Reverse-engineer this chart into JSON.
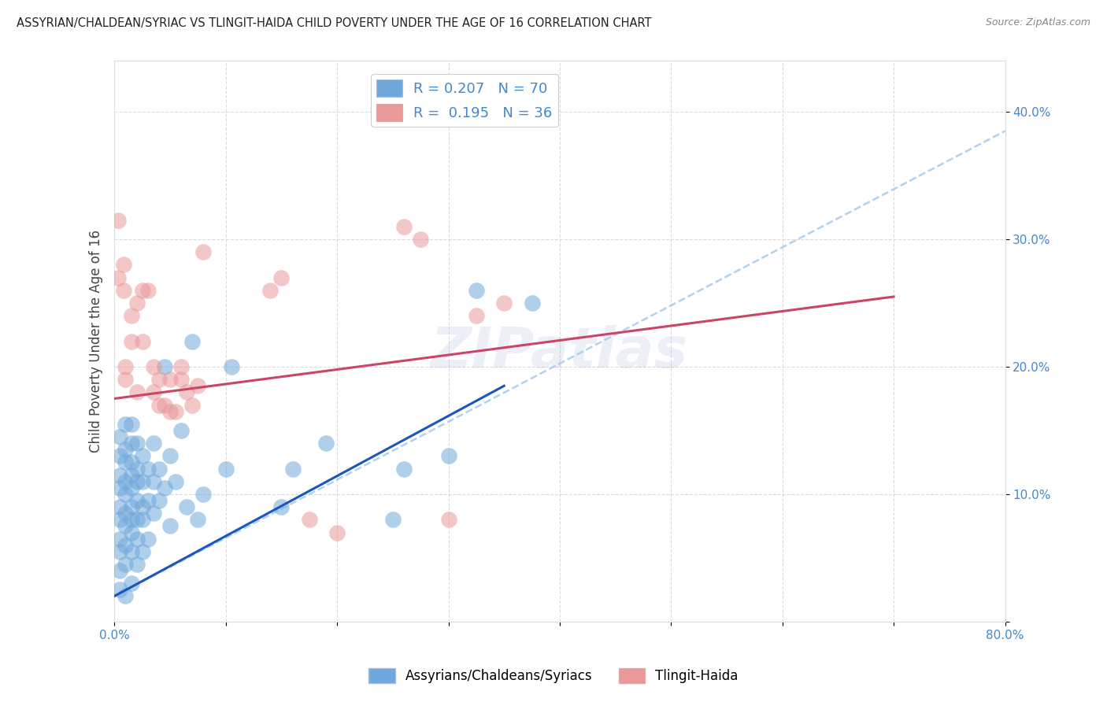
{
  "title": "ASSYRIAN/CHALDEAN/SYRIAC VS TLINGIT-HAIDA CHILD POVERTY UNDER THE AGE OF 16 CORRELATION CHART",
  "source": "Source: ZipAtlas.com",
  "ylabel": "Child Poverty Under the Age of 16",
  "r_blue": 0.207,
  "n_blue": 70,
  "r_pink": 0.195,
  "n_pink": 36,
  "legend_blue": "Assyrians/Chaldeans/Syriacs",
  "legend_pink": "Tlingit-Haida",
  "xlim": [
    0.0,
    0.8
  ],
  "ylim": [
    0.0,
    0.44
  ],
  "watermark": "ZIPatlas",
  "blue_color": "#6fa8dc",
  "pink_color": "#ea9999",
  "blue_line_color": "#1a56bb",
  "pink_line_color": "#cc4466",
  "dash_line_color": "#aaccee",
  "label_color": "#4488cc",
  "blue_scatter": [
    [
      0.005,
      0.025
    ],
    [
      0.005,
      0.04
    ],
    [
      0.005,
      0.055
    ],
    [
      0.005,
      0.065
    ],
    [
      0.005,
      0.08
    ],
    [
      0.005,
      0.09
    ],
    [
      0.005,
      0.105
    ],
    [
      0.005,
      0.115
    ],
    [
      0.005,
      0.13
    ],
    [
      0.005,
      0.145
    ],
    [
      0.01,
      0.02
    ],
    [
      0.01,
      0.045
    ],
    [
      0.01,
      0.06
    ],
    [
      0.01,
      0.075
    ],
    [
      0.01,
      0.085
    ],
    [
      0.01,
      0.1
    ],
    [
      0.01,
      0.11
    ],
    [
      0.01,
      0.125
    ],
    [
      0.01,
      0.135
    ],
    [
      0.01,
      0.155
    ],
    [
      0.015,
      0.03
    ],
    [
      0.015,
      0.055
    ],
    [
      0.015,
      0.07
    ],
    [
      0.015,
      0.08
    ],
    [
      0.015,
      0.09
    ],
    [
      0.015,
      0.105
    ],
    [
      0.015,
      0.115
    ],
    [
      0.015,
      0.125
    ],
    [
      0.015,
      0.14
    ],
    [
      0.015,
      0.155
    ],
    [
      0.02,
      0.045
    ],
    [
      0.02,
      0.065
    ],
    [
      0.02,
      0.08
    ],
    [
      0.02,
      0.095
    ],
    [
      0.02,
      0.11
    ],
    [
      0.02,
      0.12
    ],
    [
      0.02,
      0.14
    ],
    [
      0.025,
      0.055
    ],
    [
      0.025,
      0.08
    ],
    [
      0.025,
      0.09
    ],
    [
      0.025,
      0.11
    ],
    [
      0.025,
      0.13
    ],
    [
      0.03,
      0.065
    ],
    [
      0.03,
      0.095
    ],
    [
      0.03,
      0.12
    ],
    [
      0.035,
      0.085
    ],
    [
      0.035,
      0.11
    ],
    [
      0.035,
      0.14
    ],
    [
      0.04,
      0.095
    ],
    [
      0.04,
      0.12
    ],
    [
      0.045,
      0.105
    ],
    [
      0.045,
      0.2
    ],
    [
      0.05,
      0.075
    ],
    [
      0.05,
      0.13
    ],
    [
      0.055,
      0.11
    ],
    [
      0.06,
      0.15
    ],
    [
      0.065,
      0.09
    ],
    [
      0.07,
      0.22
    ],
    [
      0.075,
      0.08
    ],
    [
      0.08,
      0.1
    ],
    [
      0.1,
      0.12
    ],
    [
      0.105,
      0.2
    ],
    [
      0.15,
      0.09
    ],
    [
      0.16,
      0.12
    ],
    [
      0.19,
      0.14
    ],
    [
      0.25,
      0.08
    ],
    [
      0.26,
      0.12
    ],
    [
      0.3,
      0.13
    ],
    [
      0.325,
      0.26
    ],
    [
      0.375,
      0.25
    ]
  ],
  "pink_scatter": [
    [
      0.003,
      0.27
    ],
    [
      0.003,
      0.315
    ],
    [
      0.008,
      0.26
    ],
    [
      0.008,
      0.28
    ],
    [
      0.01,
      0.2
    ],
    [
      0.01,
      0.19
    ],
    [
      0.015,
      0.24
    ],
    [
      0.015,
      0.22
    ],
    [
      0.02,
      0.25
    ],
    [
      0.02,
      0.18
    ],
    [
      0.025,
      0.26
    ],
    [
      0.025,
      0.22
    ],
    [
      0.03,
      0.26
    ],
    [
      0.035,
      0.18
    ],
    [
      0.035,
      0.2
    ],
    [
      0.04,
      0.19
    ],
    [
      0.04,
      0.17
    ],
    [
      0.045,
      0.17
    ],
    [
      0.05,
      0.165
    ],
    [
      0.05,
      0.19
    ],
    [
      0.055,
      0.165
    ],
    [
      0.06,
      0.2
    ],
    [
      0.06,
      0.19
    ],
    [
      0.065,
      0.18
    ],
    [
      0.07,
      0.17
    ],
    [
      0.075,
      0.185
    ],
    [
      0.08,
      0.29
    ],
    [
      0.14,
      0.26
    ],
    [
      0.15,
      0.27
    ],
    [
      0.175,
      0.08
    ],
    [
      0.2,
      0.07
    ],
    [
      0.26,
      0.31
    ],
    [
      0.275,
      0.3
    ],
    [
      0.3,
      0.08
    ],
    [
      0.325,
      0.24
    ],
    [
      0.35,
      0.25
    ]
  ],
  "blue_line_x": [
    0.0,
    0.35
  ],
  "blue_line_y": [
    0.02,
    0.185
  ],
  "pink_line_x": [
    0.0,
    0.7
  ],
  "pink_line_y": [
    0.175,
    0.255
  ],
  "dash_line_x": [
    0.0,
    0.8
  ],
  "dash_line_y": [
    0.02,
    0.385
  ]
}
